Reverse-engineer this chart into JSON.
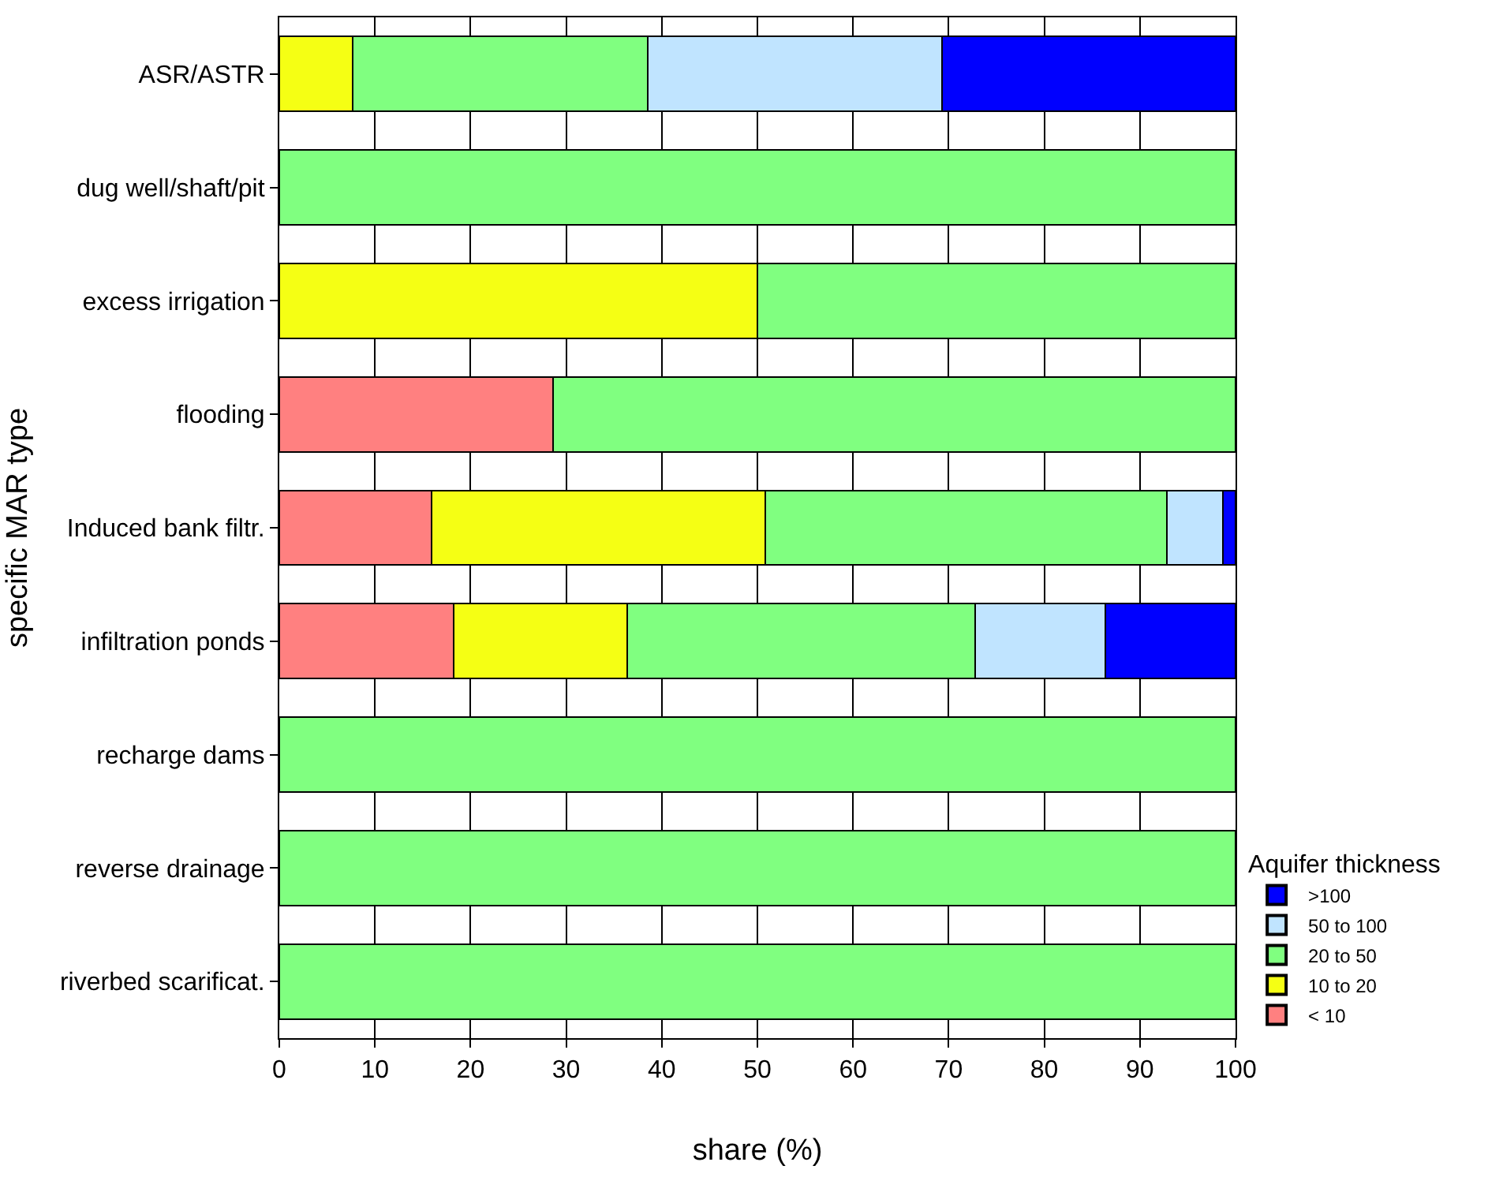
{
  "chart_data": {
    "type": "bar",
    "orientation": "horizontal",
    "stacked": true,
    "xlabel": "share (%)",
    "ylabel": "specific MAR type",
    "legend_title": "Aquifer thickness",
    "categories": [
      "ASR/ASTR",
      "dug well/shaft/pit",
      "excess irrigation",
      "flooding",
      "Induced bank filtr.",
      "infiltration ponds",
      "recharge dams",
      "reverse drainage",
      "riverbed scarificat."
    ],
    "series": [
      {
        "name": "< 10",
        "color": "#ff8080",
        "values": [
          0,
          0,
          0,
          28.6,
          15.9,
          18.2,
          0,
          0,
          0
        ]
      },
      {
        "name": "10 to 20",
        "color": "#f5ff14",
        "values": [
          7.7,
          0,
          50,
          0,
          34.9,
          18.2,
          0,
          0,
          0
        ]
      },
      {
        "name": "20 to 50",
        "color": "#80ff80",
        "values": [
          30.8,
          100,
          50,
          71.4,
          42.0,
          36.4,
          100,
          100,
          100
        ]
      },
      {
        "name": "50 to 100",
        "color": "#c0e4ff",
        "values": [
          30.8,
          0,
          0,
          0,
          5.9,
          13.6,
          0,
          0,
          0
        ]
      },
      {
        "name": ">100",
        "color": "#0000ff",
        "values": [
          30.7,
          0,
          0,
          0,
          1.3,
          13.6,
          0,
          0,
          0
        ]
      }
    ],
    "xlim": [
      0,
      100
    ],
    "xticks": [
      0,
      10,
      20,
      30,
      40,
      50,
      60,
      70,
      80,
      90,
      100
    ],
    "grid": "x",
    "legend": "right"
  }
}
